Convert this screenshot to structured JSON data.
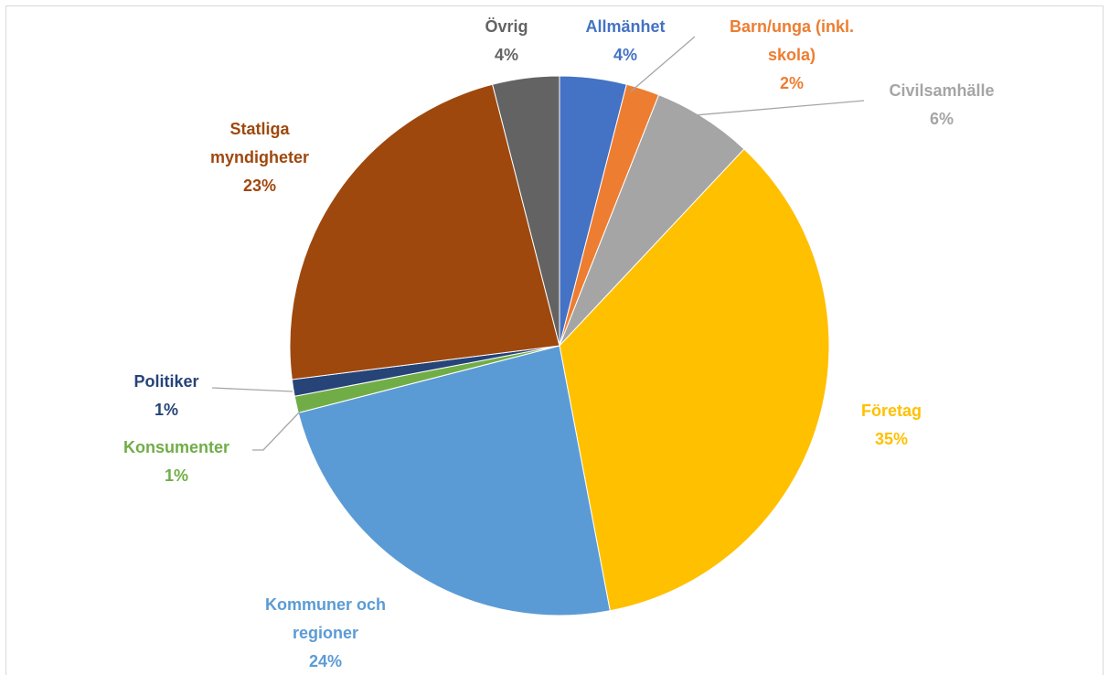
{
  "chart_data": {
    "type": "pie",
    "categories": [
      "Allmänhet",
      "Barn/unga (inkl. skola)",
      "Civilsamhälle",
      "Företag",
      "Kommuner och regioner",
      "Konsumenter",
      "Politiker",
      "Statliga myndigheter",
      "Övrig"
    ],
    "values": [
      4,
      2,
      6,
      35,
      24,
      1,
      1,
      23,
      4
    ],
    "value_labels": [
      "4%",
      "2%",
      "6%",
      "35%",
      "24%",
      "1%",
      "1%",
      "23%",
      "4%"
    ],
    "colors": [
      "#4472c4",
      "#ed7d31",
      "#a5a5a5",
      "#ffc000",
      "#5b9bd5",
      "#70ad47",
      "#264478",
      "#9e480e",
      "#636363"
    ]
  }
}
